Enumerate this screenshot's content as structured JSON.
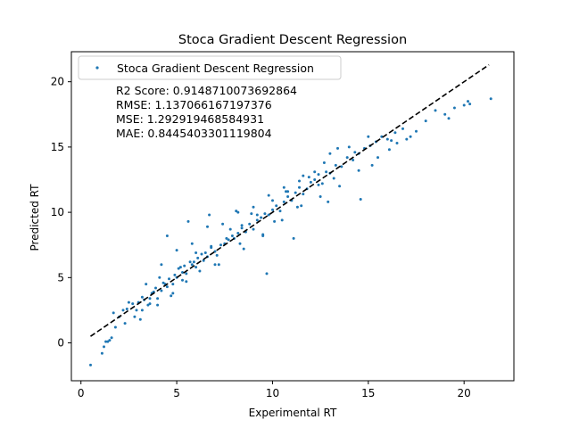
{
  "chart_data": {
    "type": "scatter",
    "title": "Stoca Gradient Descent Regression",
    "xlabel": "Experimental RT",
    "ylabel": "Predicted RT",
    "xlim": [
      -0.5,
      22.6
    ],
    "ylim": [
      -2.9,
      22.3
    ],
    "xticks": [
      0,
      5,
      10,
      15,
      20
    ],
    "yticks": [
      0,
      5,
      10,
      15,
      20
    ],
    "grid": false,
    "legend": {
      "position": "top-left",
      "entries": [
        "Stoca Gradient Descent Regression"
      ]
    },
    "annotations": [
      "R2 Score: 0.9148710073692864",
      "RMSE: 1.137066167197376",
      "MSE: 1.292919468584931",
      "MAE: 0.8445403301119804"
    ],
    "series": [
      {
        "name": "Stoca Gradient Descent Regression",
        "color": "#1f77b4",
        "x": [
          0.5,
          1.1,
          1.2,
          1.3,
          1.4,
          1.5,
          1.6,
          1.8,
          2.0,
          2.2,
          2.4,
          2.5,
          2.7,
          2.9,
          3.0,
          3.2,
          3.3,
          3.5,
          3.6,
          3.8,
          3.9,
          4.0,
          4.2,
          4.3,
          4.5,
          4.6,
          4.8,
          4.9,
          5.0,
          5.1,
          5.3,
          5.4,
          5.5,
          5.7,
          5.8,
          6.0,
          6.1,
          6.3,
          6.4,
          6.6,
          6.8,
          7.0,
          7.1,
          7.3,
          7.5,
          7.7,
          7.9,
          8.0,
          8.2,
          8.4,
          8.6,
          8.8,
          9.0,
          9.2,
          9.4,
          9.6,
          9.8,
          10.0,
          10.2,
          10.4,
          10.6,
          10.8,
          11.0,
          11.2,
          11.4,
          11.6,
          11.8,
          12.0,
          12.2,
          12.4,
          12.6,
          12.8,
          13.0,
          13.3,
          13.6,
          13.9,
          14.2,
          14.5,
          14.8,
          15.1,
          15.4,
          15.7,
          16.0,
          16.4,
          16.8,
          17.2,
          18.5,
          19.0,
          19.5,
          20.0,
          20.2,
          21.4,
          3.2,
          4.0,
          4.8,
          5.5,
          6.2,
          7.0,
          8.5,
          9.5,
          10.5,
          11.5,
          12.5,
          13.5,
          14.5,
          15.5,
          2.8,
          3.6,
          4.4,
          5.2,
          6.0,
          6.8,
          7.6,
          8.4,
          9.2,
          10.0,
          10.8,
          11.6,
          12.4,
          13.2,
          14.0,
          15.0,
          16.2,
          17.5,
          1.7,
          2.3,
          3.1,
          3.7,
          4.1,
          4.7,
          5.3,
          5.9,
          6.5,
          7.2,
          7.8,
          8.3,
          8.9,
          9.5,
          10.1,
          10.7,
          11.3,
          11.9,
          12.7,
          13.4,
          14.3,
          15.2,
          16.1,
          17.0,
          18.0,
          19.2,
          20.3,
          4.5,
          5.6,
          6.7,
          8.1,
          9.7,
          11.1,
          12.9,
          14.6,
          16.5,
          3.4,
          4.2,
          5.0,
          5.8,
          6.6,
          7.4,
          8.2,
          9.0,
          9.8,
          10.6,
          11.4,
          12.2,
          13.0
        ],
        "y": [
          -1.7,
          -0.8,
          -0.3,
          0.1,
          0.1,
          0.2,
          0.4,
          1.2,
          2.0,
          2.5,
          2.6,
          3.1,
          3.0,
          2.5,
          3.1,
          3.5,
          3.3,
          2.9,
          3.4,
          3.9,
          4.2,
          3.4,
          4.0,
          4.6,
          4.3,
          4.9,
          4.5,
          5.2,
          5.0,
          5.7,
          5.4,
          5.9,
          5.3,
          6.2,
          6.0,
          5.8,
          6.5,
          6.8,
          6.3,
          6.6,
          7.3,
          7.0,
          6.7,
          7.5,
          7.6,
          7.9,
          8.2,
          8.0,
          8.4,
          8.8,
          8.5,
          9.1,
          8.7,
          9.4,
          9.6,
          9.9,
          9.8,
          10.2,
          10.5,
          10.1,
          10.8,
          11.2,
          10.9,
          11.5,
          11.9,
          11.4,
          11.8,
          12.3,
          12.5,
          12.9,
          12.2,
          13.1,
          13.0,
          13.6,
          13.5,
          14.2,
          14.0,
          14.5,
          14.9,
          15.1,
          15.4,
          15.8,
          15.6,
          16.1,
          16.4,
          15.8,
          17.8,
          17.5,
          18.0,
          18.2,
          18.5,
          18.7,
          2.5,
          2.9,
          3.8,
          4.7,
          5.5,
          6.0,
          7.2,
          8.3,
          9.4,
          10.5,
          11.2,
          12.0,
          13.2,
          14.2,
          2.0,
          3.0,
          4.5,
          5.8,
          6.9,
          7.4,
          8.0,
          9.0,
          9.8,
          10.9,
          11.6,
          12.8,
          12.1,
          12.6,
          15.0,
          15.8,
          15.5,
          16.2,
          2.3,
          1.5,
          1.8,
          3.8,
          5.0,
          3.6,
          4.8,
          6.2,
          6.9,
          6.0,
          8.7,
          7.6,
          9.9,
          8.2,
          9.3,
          11.6,
          10.4,
          12.7,
          13.8,
          14.9,
          14.6,
          13.6,
          14.8,
          15.6,
          17.0,
          17.2,
          18.3,
          8.2,
          9.3,
          9.8,
          10.1,
          5.3,
          8.0,
          10.8,
          11.0,
          15.3,
          4.5,
          6.0,
          7.1,
          7.6,
          8.9,
          9.1,
          10.0,
          10.4,
          11.3,
          11.9,
          12.4,
          13.1,
          14.5
        ]
      }
    ],
    "reference_line": {
      "style": "dashed",
      "color": "#000000",
      "from": [
        0.5,
        0.5
      ],
      "to": [
        21.3,
        21.3
      ]
    }
  }
}
